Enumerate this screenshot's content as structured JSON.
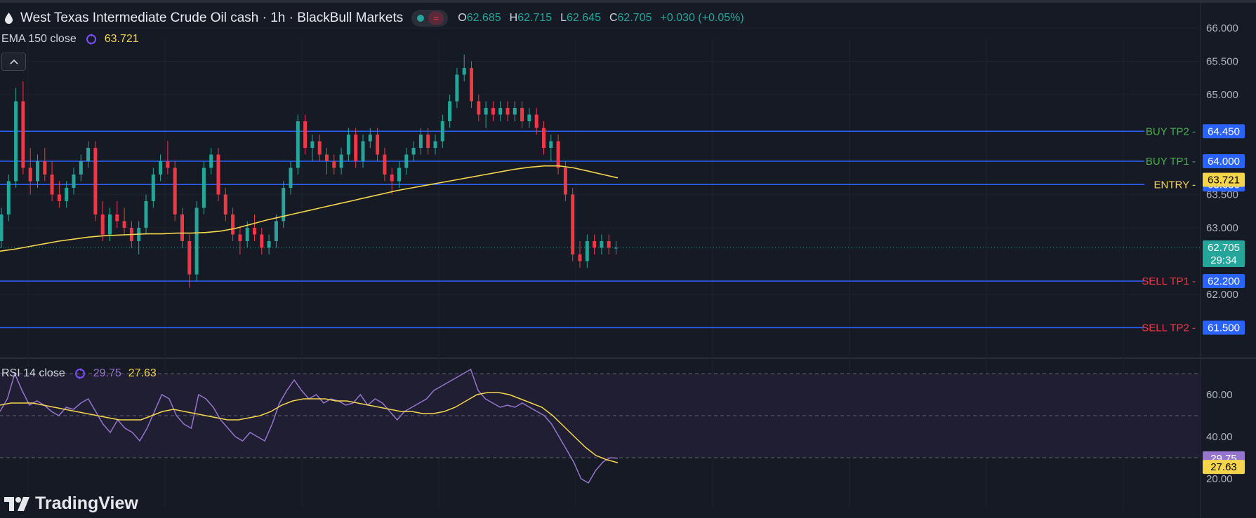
{
  "header": {
    "title": "West Texas Intermediate Crude Oil cash · 1h · BlackBull Markets",
    "open_label": "O",
    "open": "62.685",
    "high_label": "H",
    "high": "62.715",
    "low_label": "L",
    "low": "62.645",
    "close_label": "C",
    "close": "62.705",
    "change": "+0.030 (+0.05%)"
  },
  "ema": {
    "label": "EMA 150 close",
    "value": "63.721"
  },
  "rsi": {
    "label": "RSI 14 close",
    "value": "29.75",
    "ma_value": "27.63"
  },
  "logo": {
    "text": "TradingView"
  },
  "colors": {
    "background": "#161a25",
    "up": "#26a69a",
    "down": "#f23645",
    "ema": "#f5d54b",
    "rsi": "#9575cd",
    "level_line": "#2962ff",
    "buy": "#4caf50",
    "sell": "#f23645",
    "entry": "#f5d54b"
  },
  "chart_data": [
    {
      "type": "candlestick",
      "title": "West Texas Intermediate Crude Oil cash · 1h · BlackBull Markets",
      "ylim": [
        61.2,
        66.2
      ],
      "y_ticks": [
        "66.000",
        "65.500",
        "65.000",
        "63.500",
        "63.000",
        "62.000"
      ],
      "grid": true,
      "ohlc": [
        [
          62.8,
          63.3,
          62.7,
          63.2
        ],
        [
          63.2,
          63.8,
          63.1,
          63.7
        ],
        [
          63.7,
          65.1,
          63.6,
          64.9
        ],
        [
          64.9,
          65.2,
          63.8,
          63.9
        ],
        [
          63.9,
          64.2,
          63.5,
          63.7
        ],
        [
          63.7,
          64.1,
          63.6,
          64.0
        ],
        [
          64.0,
          64.2,
          63.7,
          63.8
        ],
        [
          63.8,
          64.0,
          63.4,
          63.5
        ],
        [
          63.5,
          63.7,
          63.3,
          63.4
        ],
        [
          63.4,
          63.7,
          63.3,
          63.6
        ],
        [
          63.6,
          63.9,
          63.5,
          63.8
        ],
        [
          63.8,
          64.1,
          63.7,
          64.0
        ],
        [
          64.0,
          64.3,
          63.9,
          64.2
        ],
        [
          64.2,
          64.3,
          63.1,
          63.2
        ],
        [
          63.2,
          63.4,
          62.8,
          62.9
        ],
        [
          62.9,
          63.3,
          62.8,
          63.2
        ],
        [
          63.2,
          63.4,
          63.0,
          63.1
        ],
        [
          63.1,
          63.3,
          62.9,
          63.0
        ],
        [
          63.0,
          63.1,
          62.7,
          62.8
        ],
        [
          62.8,
          63.1,
          62.6,
          63.0
        ],
        [
          63.0,
          63.5,
          62.9,
          63.4
        ],
        [
          63.4,
          63.9,
          63.3,
          63.8
        ],
        [
          63.8,
          64.1,
          63.7,
          64.0
        ],
        [
          64.0,
          64.3,
          63.8,
          63.9
        ],
        [
          63.9,
          64.0,
          63.1,
          63.2
        ],
        [
          63.2,
          63.3,
          62.7,
          62.8
        ],
        [
          62.8,
          62.9,
          62.1,
          62.3
        ],
        [
          62.3,
          63.4,
          62.2,
          63.3
        ],
        [
          63.3,
          64.0,
          63.2,
          63.9
        ],
        [
          63.9,
          64.2,
          63.8,
          64.1
        ],
        [
          64.1,
          64.2,
          63.4,
          63.5
        ],
        [
          63.5,
          63.6,
          63.1,
          63.2
        ],
        [
          63.2,
          63.3,
          62.8,
          62.9
        ],
        [
          62.9,
          63.0,
          62.6,
          62.8
        ],
        [
          62.8,
          63.1,
          62.7,
          63.0
        ],
        [
          63.0,
          63.2,
          62.8,
          62.9
        ],
        [
          62.9,
          63.0,
          62.6,
          62.7
        ],
        [
          62.7,
          62.9,
          62.6,
          62.8
        ],
        [
          62.8,
          63.2,
          62.7,
          63.1
        ],
        [
          63.1,
          63.7,
          63.0,
          63.6
        ],
        [
          63.6,
          64.0,
          63.5,
          63.9
        ],
        [
          63.9,
          64.7,
          63.8,
          64.6
        ],
        [
          64.6,
          64.7,
          64.1,
          64.2
        ],
        [
          64.2,
          64.4,
          64.0,
          64.3
        ],
        [
          64.3,
          64.4,
          64.0,
          64.1
        ],
        [
          64.1,
          64.2,
          63.8,
          64.0
        ],
        [
          64.0,
          64.1,
          63.8,
          63.9
        ],
        [
          63.9,
          64.2,
          63.8,
          64.1
        ],
        [
          64.1,
          64.5,
          64.0,
          64.4
        ],
        [
          64.4,
          64.5,
          63.9,
          64.0
        ],
        [
          64.0,
          64.4,
          63.9,
          64.3
        ],
        [
          64.3,
          64.5,
          64.2,
          64.4
        ],
        [
          64.4,
          64.5,
          64.0,
          64.1
        ],
        [
          64.1,
          64.2,
          63.7,
          63.8
        ],
        [
          63.8,
          63.9,
          63.5,
          63.7
        ],
        [
          63.7,
          64.0,
          63.6,
          63.9
        ],
        [
          63.9,
          64.2,
          63.8,
          64.1
        ],
        [
          64.1,
          64.3,
          64.0,
          64.2
        ],
        [
          64.2,
          64.5,
          64.1,
          64.4
        ],
        [
          64.4,
          64.5,
          64.1,
          64.2
        ],
        [
          64.2,
          64.4,
          64.1,
          64.3
        ],
        [
          64.3,
          64.7,
          64.2,
          64.6
        ],
        [
          64.6,
          65.0,
          64.5,
          64.9
        ],
        [
          64.9,
          65.4,
          64.8,
          65.3
        ],
        [
          65.3,
          65.6,
          65.2,
          65.4
        ],
        [
          65.4,
          65.5,
          64.8,
          64.9
        ],
        [
          64.9,
          65.0,
          64.6,
          64.7
        ],
        [
          64.7,
          64.9,
          64.5,
          64.8
        ],
        [
          64.8,
          64.9,
          64.6,
          64.7
        ],
        [
          64.7,
          64.9,
          64.6,
          64.8
        ],
        [
          64.8,
          64.9,
          64.6,
          64.7
        ],
        [
          64.7,
          64.9,
          64.6,
          64.8
        ],
        [
          64.8,
          64.9,
          64.5,
          64.6
        ],
        [
          64.6,
          64.8,
          64.5,
          64.7
        ],
        [
          64.7,
          64.8,
          64.4,
          64.5
        ],
        [
          64.5,
          64.6,
          64.1,
          64.2
        ],
        [
          64.2,
          64.4,
          64.0,
          64.3
        ],
        [
          64.3,
          64.4,
          63.8,
          63.9
        ],
        [
          63.9,
          64.0,
          63.4,
          63.5
        ],
        [
          63.5,
          63.6,
          62.5,
          62.6
        ],
        [
          62.6,
          62.8,
          62.4,
          62.5
        ],
        [
          62.5,
          62.9,
          62.4,
          62.8
        ],
        [
          62.8,
          62.9,
          62.6,
          62.7
        ],
        [
          62.7,
          62.9,
          62.6,
          62.8
        ],
        [
          62.8,
          62.9,
          62.6,
          62.7
        ],
        [
          62.7,
          62.8,
          62.6,
          62.7
        ]
      ],
      "ema150": [
        62.65,
        62.68,
        62.72,
        62.76,
        62.8,
        62.83,
        62.86,
        62.88,
        62.89,
        62.9,
        62.91,
        62.91,
        62.92,
        62.92,
        62.93,
        62.95,
        62.99,
        63.05,
        63.11,
        63.16,
        63.21,
        63.26,
        63.31,
        63.36,
        63.41,
        63.46,
        63.51,
        63.56,
        63.6,
        63.64,
        63.68,
        63.72,
        63.76,
        63.8,
        63.84,
        63.88,
        63.91,
        63.93,
        63.93,
        63.9,
        63.85,
        63.8,
        63.75
      ],
      "levels": [
        {
          "name": "BUY TP2",
          "value": "64.450",
          "type": "buy"
        },
        {
          "name": "BUY TP1",
          "value": "64.000",
          "type": "buy"
        },
        {
          "name": "ENTRY",
          "value": "63.650",
          "type": "entry"
        },
        {
          "name": "SELL TP1",
          "value": "62.200",
          "type": "sell"
        },
        {
          "name": "SELL TP2",
          "value": "61.500",
          "type": "sell"
        }
      ],
      "ema_label": "63.721",
      "last_price": "62.705",
      "countdown": "29:34"
    },
    {
      "type": "line",
      "title": "RSI 14 close",
      "ylim": [
        12,
        78
      ],
      "y_ticks": [
        "60.00",
        "40.00",
        "20.00"
      ],
      "bands": [
        70,
        50,
        30
      ],
      "series": [
        {
          "name": "RSI",
          "values": [
            52,
            58,
            70,
            62,
            55,
            57,
            55,
            52,
            50,
            54,
            53,
            56,
            58,
            52,
            46,
            42,
            48,
            44,
            42,
            38,
            44,
            52,
            60,
            58,
            50,
            46,
            44,
            60,
            58,
            54,
            48,
            44,
            40,
            38,
            42,
            40,
            38,
            46,
            56,
            62,
            67,
            62,
            58,
            60,
            56,
            58,
            57,
            55,
            56,
            60,
            55,
            58,
            56,
            52,
            48,
            52,
            54,
            56,
            58,
            62,
            64,
            66,
            68,
            70,
            72,
            62,
            58,
            56,
            54,
            55,
            54,
            56,
            54,
            52,
            50,
            46,
            40,
            34,
            28,
            20,
            18,
            24,
            28,
            30,
            29.75
          ]
        },
        {
          "name": "RSI-based MA",
          "values": [
            55,
            56,
            56,
            56,
            55,
            54,
            53,
            52,
            51,
            50,
            49,
            48,
            48,
            48,
            50,
            52,
            53,
            52,
            51,
            50,
            49,
            48,
            48,
            49,
            50,
            52,
            55,
            57,
            58,
            58,
            58,
            57,
            57,
            56,
            55,
            54,
            53,
            52,
            52,
            51,
            51,
            52,
            54,
            57,
            60,
            61,
            61,
            60,
            58,
            56,
            54,
            50,
            45,
            40,
            35,
            31,
            29,
            27.63
          ]
        }
      ]
    }
  ]
}
